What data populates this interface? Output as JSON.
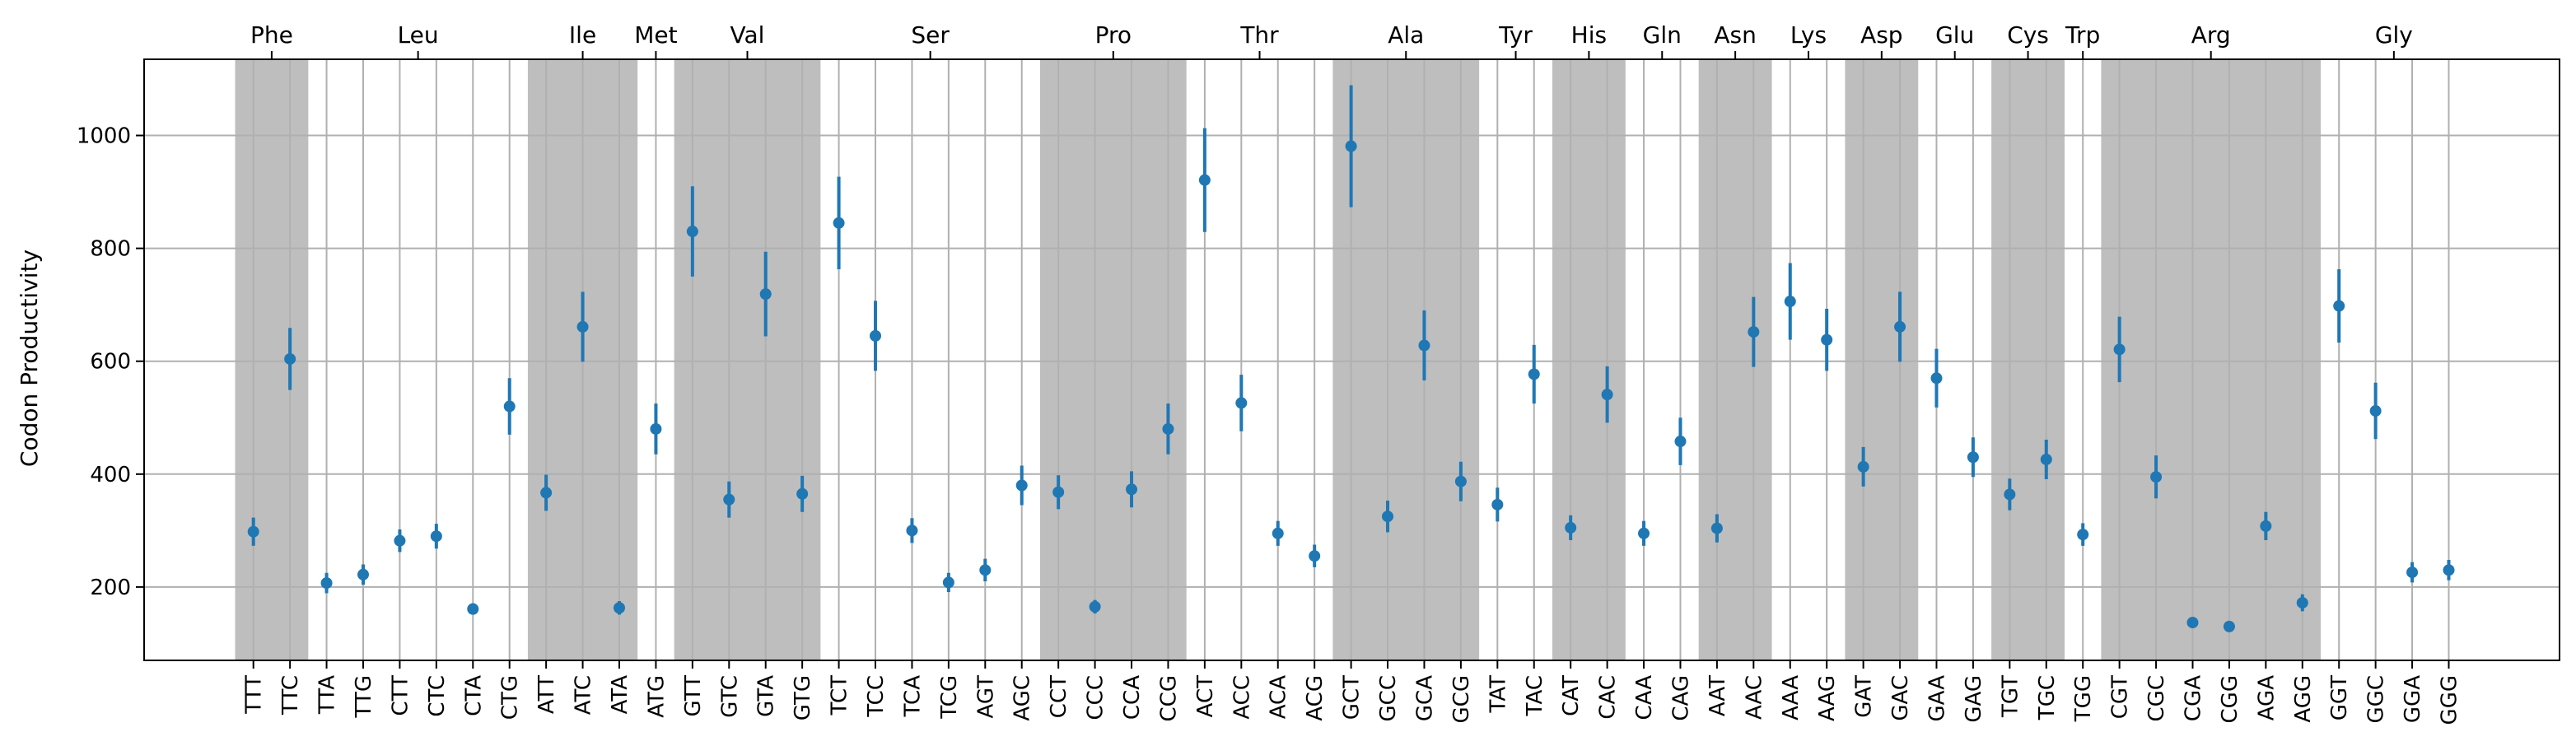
{
  "chart_data": {
    "type": "scatter",
    "ylabel": "Codon Productivity",
    "yticks": [
      200,
      400,
      600,
      800,
      1000
    ],
    "ylim": [
      70,
      1135
    ],
    "grid": true,
    "colors": {
      "point": "#1f77b4",
      "shade": "#bebebe",
      "grid": "#b0b0b0",
      "axis": "#000000"
    },
    "codons": [
      "TTT",
      "TTC",
      "TTA",
      "TTG",
      "CTT",
      "CTC",
      "CTA",
      "CTG",
      "ATT",
      "ATC",
      "ATA",
      "ATG",
      "GTT",
      "GTC",
      "GTA",
      "GTG",
      "TCT",
      "TCC",
      "TCA",
      "TCG",
      "AGT",
      "AGC",
      "CCT",
      "CCC",
      "CCA",
      "CCG",
      "ACT",
      "ACC",
      "ACA",
      "ACG",
      "GCT",
      "GCC",
      "GCA",
      "GCG",
      "TAT",
      "TAC",
      "CAT",
      "CAC",
      "CAA",
      "CAG",
      "AAT",
      "AAC",
      "AAA",
      "AAG",
      "GAT",
      "GAC",
      "GAA",
      "GAG",
      "TGT",
      "TGC",
      "TGG",
      "CGT",
      "CGC",
      "CGA",
      "CGG",
      "AGA",
      "AGG",
      "GGT",
      "GGC",
      "GGA",
      "GGG"
    ],
    "values": [
      298,
      604,
      207,
      222,
      282,
      290,
      161,
      520,
      367,
      661,
      163,
      480,
      830,
      355,
      719,
      365,
      845,
      645,
      300,
      208,
      230,
      380,
      368,
      165,
      373,
      480,
      921,
      526,
      295,
      255,
      981,
      325,
      628,
      387,
      346,
      577,
      305,
      541,
      295,
      458,
      304,
      652,
      706,
      638,
      413,
      661,
      570,
      430,
      364,
      426,
      293,
      621,
      395,
      137,
      130,
      308,
      172,
      698,
      512,
      226,
      230
    ],
    "error": [
      25,
      55,
      18,
      18,
      20,
      22,
      10,
      50,
      32,
      62,
      12,
      45,
      80,
      32,
      75,
      32,
      82,
      62,
      22,
      17,
      20,
      35,
      30,
      12,
      32,
      45,
      92,
      50,
      22,
      20,
      108,
      28,
      62,
      35,
      30,
      52,
      22,
      50,
      22,
      42,
      25,
      62,
      68,
      55,
      35,
      62,
      52,
      35,
      28,
      35,
      20,
      58,
      38,
      8,
      6,
      25,
      15,
      65,
      50,
      18,
      18
    ],
    "amino_acids": [
      {
        "name": "Phe",
        "start": 0,
        "end": 1,
        "shaded": true
      },
      {
        "name": "Leu",
        "start": 2,
        "end": 7,
        "shaded": false
      },
      {
        "name": "Ile",
        "start": 8,
        "end": 10,
        "shaded": true
      },
      {
        "name": "Met",
        "start": 11,
        "end": 11,
        "shaded": false
      },
      {
        "name": "Val",
        "start": 12,
        "end": 15,
        "shaded": true
      },
      {
        "name": "Ser",
        "start": 16,
        "end": 21,
        "shaded": false
      },
      {
        "name": "Pro",
        "start": 22,
        "end": 25,
        "shaded": true
      },
      {
        "name": "Thr",
        "start": 26,
        "end": 29,
        "shaded": false
      },
      {
        "name": "Ala",
        "start": 30,
        "end": 33,
        "shaded": true
      },
      {
        "name": "Tyr",
        "start": 34,
        "end": 35,
        "shaded": false
      },
      {
        "name": "His",
        "start": 36,
        "end": 37,
        "shaded": true
      },
      {
        "name": "Gln",
        "start": 38,
        "end": 39,
        "shaded": false
      },
      {
        "name": "Asn",
        "start": 40,
        "end": 41,
        "shaded": true
      },
      {
        "name": "Lys",
        "start": 42,
        "end": 43,
        "shaded": false
      },
      {
        "name": "Asp",
        "start": 44,
        "end": 45,
        "shaded": true
      },
      {
        "name": "Glu",
        "start": 46,
        "end": 47,
        "shaded": false
      },
      {
        "name": "Cys",
        "start": 48,
        "end": 49,
        "shaded": true
      },
      {
        "name": "Trp",
        "start": 50,
        "end": 50,
        "shaded": false
      },
      {
        "name": "Arg",
        "start": 51,
        "end": 56,
        "shaded": true
      },
      {
        "name": "Gly",
        "start": 57,
        "end": 60,
        "shaded": false
      }
    ]
  }
}
